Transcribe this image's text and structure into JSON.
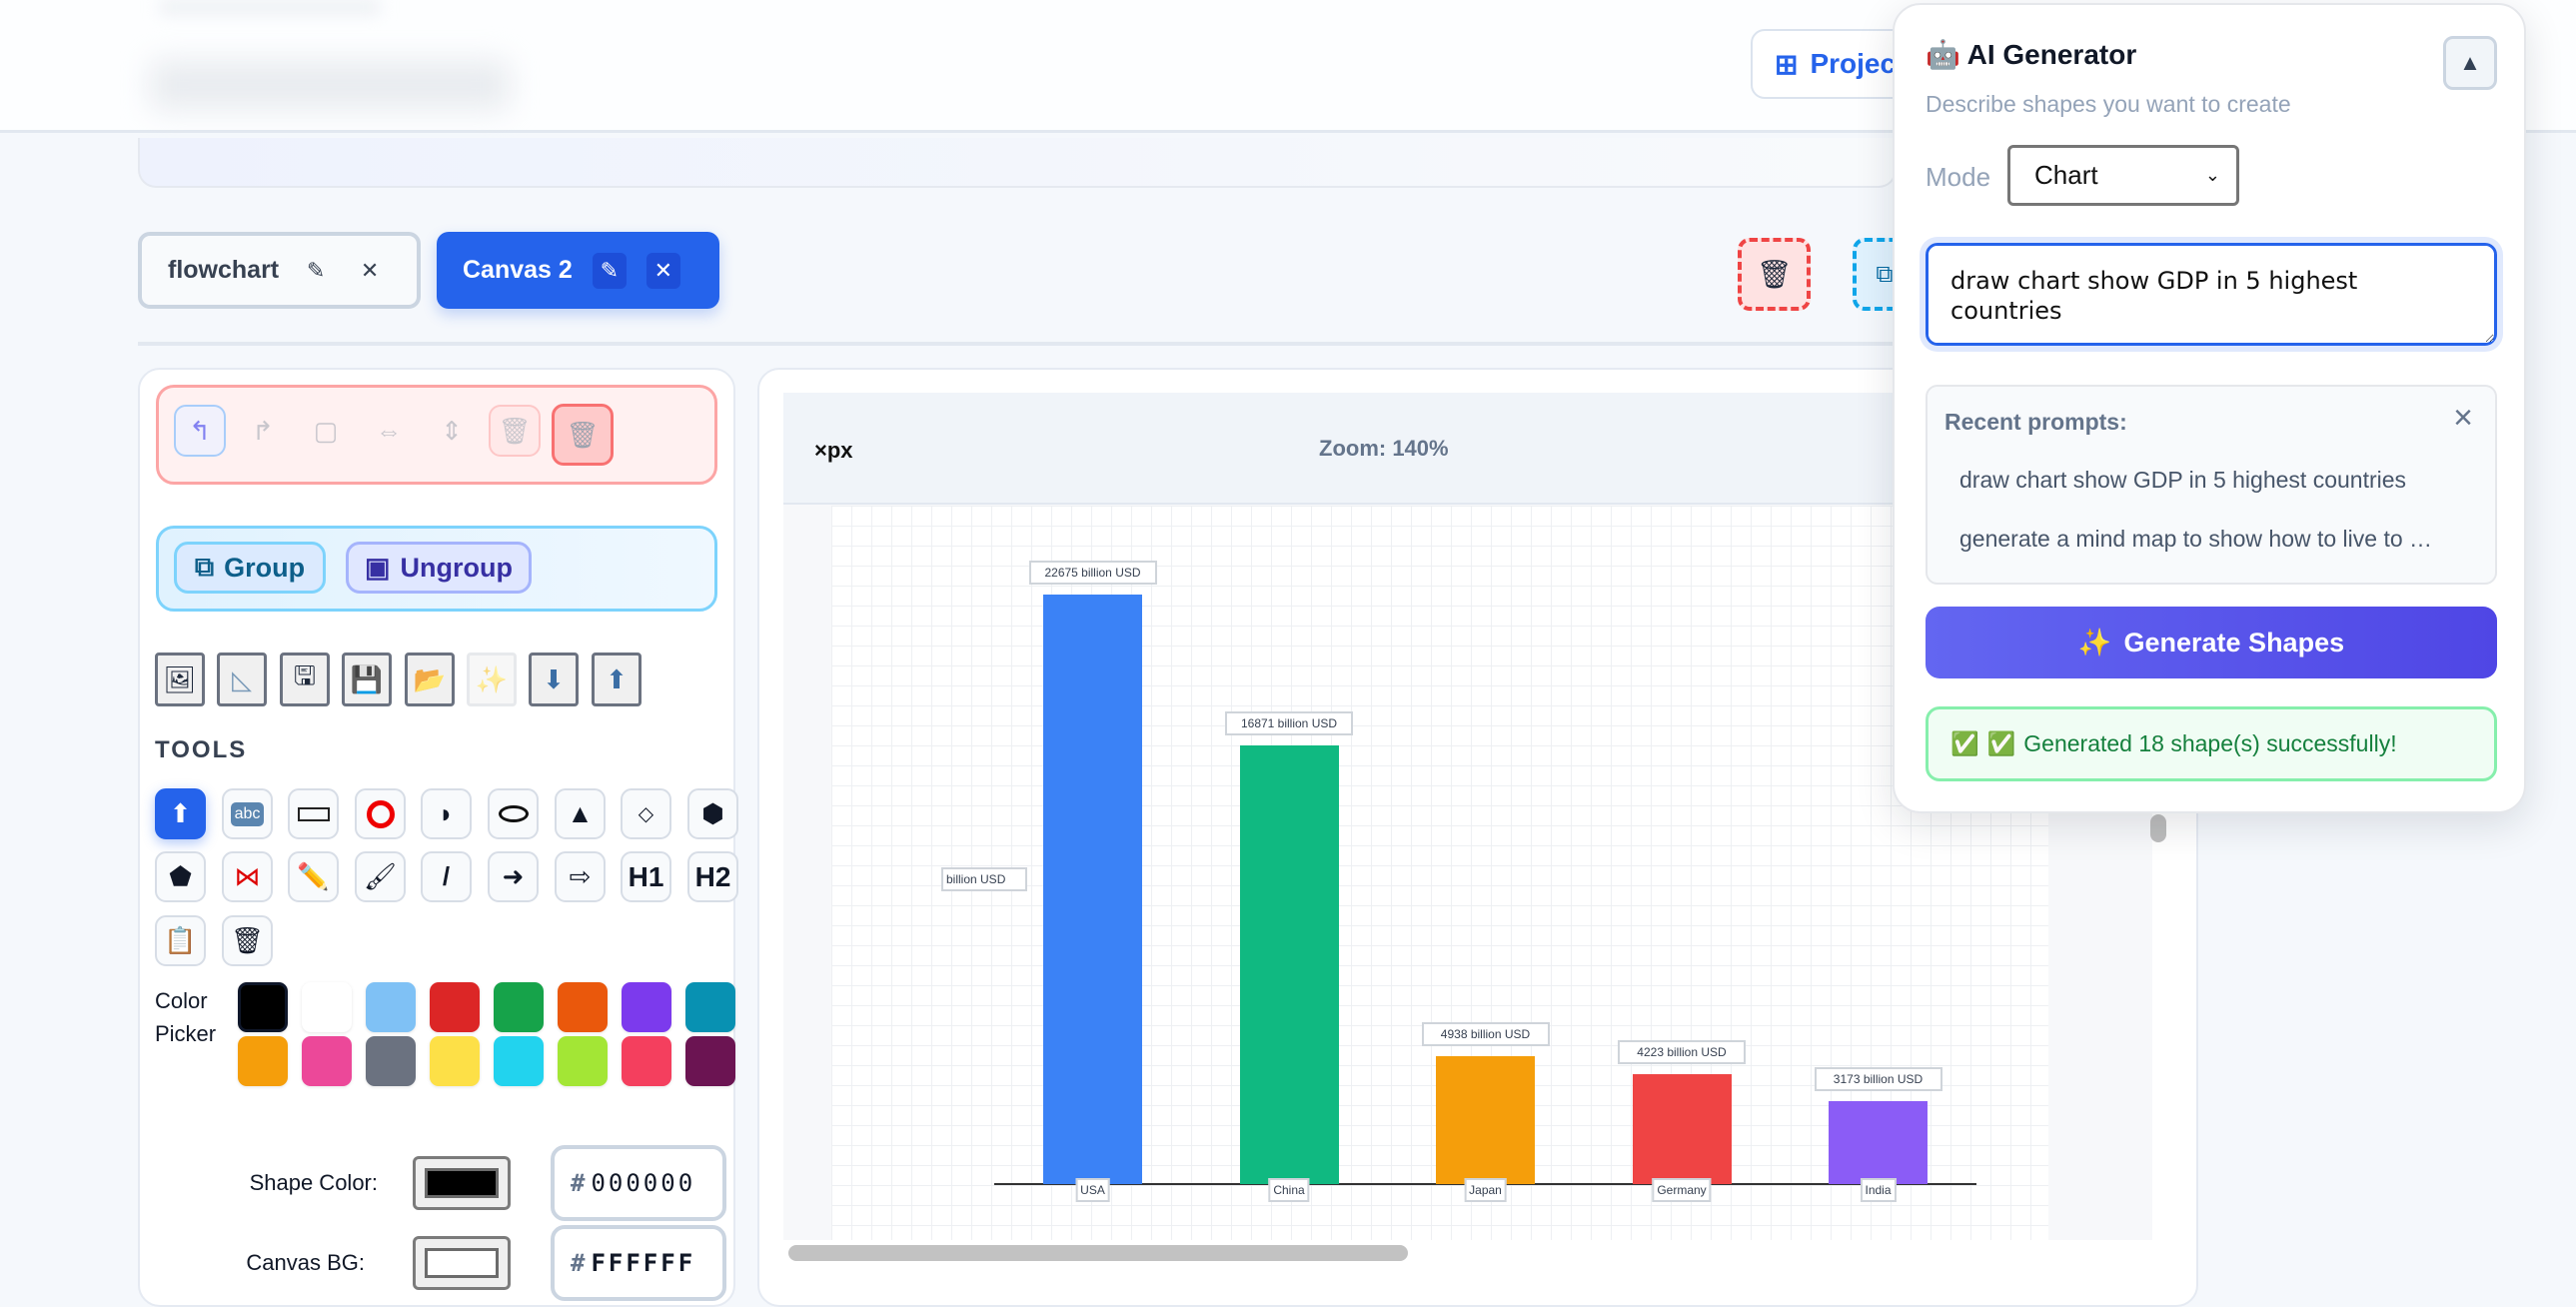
{
  "header": {
    "projects_label": "Projects"
  },
  "tabs": [
    {
      "label": "flowchart",
      "active": false
    },
    {
      "label": "Canvas 2",
      "active": true
    }
  ],
  "tab_icons": {
    "edit": "✎",
    "close": "✕"
  },
  "left_panel": {
    "group_label": "Group",
    "ungroup_label": "Ungroup",
    "tools_label": "TOOLS",
    "color_picker_label": "Color Picker",
    "palette": [
      "#000000",
      "#ffffff",
      "#7fc1f5",
      "#dc2626",
      "#16a34a",
      "#ea580c",
      "#7c3aed",
      "#0891b2",
      "#f59e0b",
      "#ec4899",
      "#6b7280",
      "#fde047",
      "#22d3ee",
      "#a3e635",
      "#f43f5e",
      "#6b1452"
    ],
    "shape_color_label": "Shape Color:",
    "shape_color_value": "000000",
    "canvas_bg_label": "Canvas BG:",
    "canvas_bg_value": "FFFFFF",
    "hash": "#"
  },
  "canvas": {
    "px_label": "×px",
    "zoom_label": "Zoom: 140%"
  },
  "chart_data": {
    "type": "bar",
    "categories": [
      "USA",
      "China",
      "Japan",
      "Germany",
      "India"
    ],
    "values": [
      22675,
      16871,
      4938,
      4223,
      3173
    ],
    "value_labels": [
      "22675 billion USD",
      "16871 billion USD",
      "4938 billion USD",
      "4223 billion USD",
      "3173 billion USD"
    ],
    "ylabel": "billion USD",
    "colors": [
      "#3b82f6",
      "#10b981",
      "#f59e0b",
      "#ef4444",
      "#8b5cf6"
    ],
    "grid": true
  },
  "ai_panel": {
    "title": "AI Generator",
    "subtitle": "Describe shapes you want to create",
    "mode_label": "Mode",
    "mode_value": "Chart",
    "prompt_value": "draw chart show GDP in 5 highest countries",
    "recent_title": "Recent prompts:",
    "recent": [
      "draw chart show GDP in 5 highest countries",
      "generate a mind map to show how to live to …"
    ],
    "generate_label": "Generate Shapes",
    "success_message": "Generated 18 shape(s) successfully!",
    "collapse_icon": "▲"
  }
}
